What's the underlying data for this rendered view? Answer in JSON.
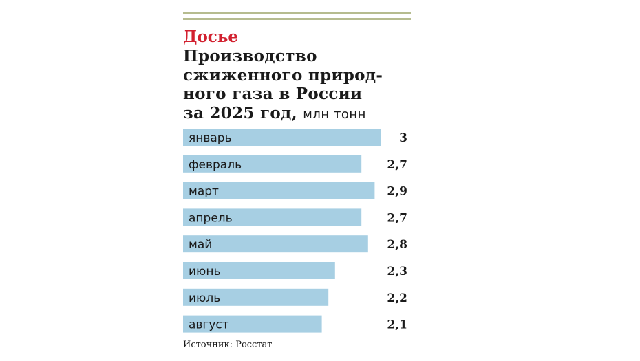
{
  "kicker": "Досье",
  "title_main": "Производство сжиженного природ-ного газа в России за 2025 год,",
  "title_lines": [
    "Производство",
    "сжиженного природ-",
    "ного газа в России",
    "за 2025 год,"
  ],
  "unit": "млн тонн",
  "source": "Источник: Росстат",
  "colors": {
    "accent": "#d2202f",
    "bar": "#a7cfe3",
    "rule": "#b6bc8f",
    "text": "#1a1a1a"
  },
  "chart_data": {
    "type": "bar",
    "orientation": "horizontal",
    "categories": [
      "январь",
      "февраль",
      "март",
      "апрель",
      "май",
      "июнь",
      "июль",
      "август"
    ],
    "values": [
      3,
      2.7,
      2.9,
      2.7,
      2.8,
      2.3,
      2.2,
      2.1
    ],
    "value_labels": [
      "3",
      "2,7",
      "2,9",
      "2,7",
      "2,8",
      "2,3",
      "2,2",
      "2,1"
    ],
    "title": "Производство сжиженного природ-ного газа в России за 2025 год,",
    "xlabel": "",
    "ylabel": "",
    "xlim": [
      0,
      3
    ],
    "grid": false,
    "legend": "none"
  }
}
